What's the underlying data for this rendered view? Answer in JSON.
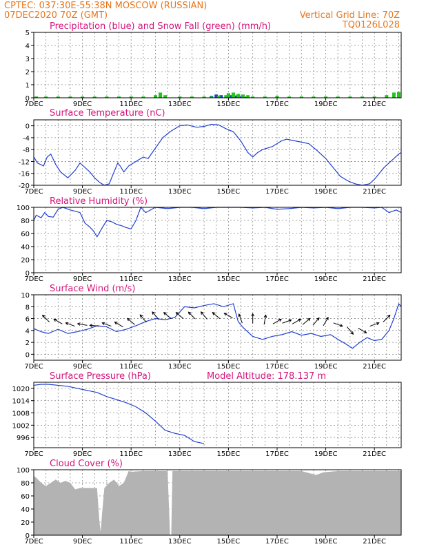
{
  "header": {
    "line1_left": "CPTEC:   037:30E-55:38N   MOSCOW (RUSSIAN)",
    "line2_left": "07DEC2020 70Z (GMT)",
    "line1_right": "Vertical Grid Line: 70Z",
    "line2_right": "TQ0126L028"
  },
  "date_labels": [
    "7DEC",
    "9DEC",
    "11DEC",
    "13DEC",
    "15DEC",
    "17DEC",
    "19DEC",
    "21DEC"
  ],
  "colors": {
    "header": "#e8761c",
    "title": "#d4147a",
    "line": "#1f3fd1",
    "snow": "#22c51c",
    "rain": "#1f3fd1",
    "cloud": "#b3b3b3"
  },
  "chart_data": [
    {
      "id": "precip",
      "type": "bar",
      "title": "Precipitation (blue) and Snow Fall (green) (mm/h)",
      "ylim": [
        0,
        5
      ],
      "yticks": [
        0,
        1,
        2,
        3,
        4,
        5
      ],
      "ytick_labels": [
        "0",
        "1",
        "2",
        "3",
        "4",
        "5"
      ],
      "xlim": [
        0,
        15.1
      ],
      "grid": true,
      "series": [
        {
          "name": "Precipitation",
          "color": "#1f3fd1",
          "x": [
            7.3,
            7.5,
            7.7,
            7.9,
            8.1,
            8.3,
            8.5,
            8.7
          ],
          "values": [
            0.15,
            0.25,
            0.2,
            0.15,
            0.2,
            0.18,
            0.12,
            0.08
          ]
        },
        {
          "name": "Snow Fall",
          "color": "#22c51c",
          "x": [
            0.1,
            0.5,
            1.0,
            1.5,
            2.0,
            2.5,
            3.0,
            3.5,
            4.0,
            4.5,
            5.0,
            5.2,
            5.4,
            6.0,
            6.5,
            7.0,
            7.3,
            7.6,
            7.9,
            8.0,
            8.2,
            8.4,
            8.6,
            8.8,
            9.0,
            9.5,
            10.0,
            10.5,
            11.0,
            11.5,
            12.0,
            12.5,
            13.0,
            13.5,
            14.0,
            14.5,
            14.8,
            15.0
          ],
          "values": [
            0.1,
            0.1,
            0.1,
            0.1,
            0.1,
            0.1,
            0.1,
            0.1,
            0.1,
            0.1,
            0.2,
            0.4,
            0.2,
            0.1,
            0.1,
            0.1,
            0.1,
            0.15,
            0.2,
            0.35,
            0.4,
            0.3,
            0.25,
            0.2,
            0.1,
            0.1,
            0.15,
            0.1,
            0.1,
            0.1,
            0.1,
            0.1,
            0.1,
            0.1,
            0.1,
            0.2,
            0.4,
            0.45
          ]
        }
      ]
    },
    {
      "id": "temp",
      "type": "line",
      "title": "Surface Temperature (nC)",
      "ylim": [
        -20,
        2
      ],
      "yticks": [
        0,
        -4,
        -8,
        -12,
        -16,
        -20
      ],
      "ytick_labels": [
        "0",
        "-4",
        "-8",
        "-12",
        "-16",
        "-20"
      ],
      "xlim": [
        0,
        15.1
      ],
      "grid": true,
      "series": [
        {
          "name": "",
          "color": "#1f3fd1",
          "x": [
            0,
            0.15,
            0.4,
            0.55,
            0.7,
            0.9,
            1.1,
            1.4,
            1.7,
            1.9,
            2.1,
            2.3,
            2.5,
            2.7,
            2.9,
            3.1,
            3.3,
            3.45,
            3.55,
            3.7,
            3.9,
            4.1,
            4.3,
            4.5,
            4.7,
            5.0,
            5.3,
            5.6,
            6.0,
            6.3,
            6.7,
            7.0,
            7.3,
            7.6,
            7.9,
            8.2,
            8.5,
            8.8,
            9.0,
            9.2,
            9.4,
            9.6,
            9.8,
            10.0,
            10.2,
            10.4,
            10.7,
            11.0,
            11.3,
            11.6,
            12.0,
            12.3,
            12.6,
            12.9,
            13.2,
            13.5,
            13.8,
            14.0,
            14.2,
            14.4,
            14.6,
            14.8,
            15.0,
            15.1
          ],
          "values": [
            -10.5,
            -12.5,
            -13.5,
            -10.5,
            -9.5,
            -13,
            -15.5,
            -17.5,
            -15,
            -12.5,
            -14,
            -15.5,
            -17.5,
            -19,
            -20,
            -19.5,
            -15.5,
            -12.5,
            -13.5,
            -15.5,
            -13.5,
            -12.5,
            -11.5,
            -10.5,
            -11,
            -7.5,
            -4,
            -2,
            0,
            0.3,
            -0.5,
            -0.2,
            0.5,
            0.3,
            -1,
            -2,
            -5,
            -9,
            -10.5,
            -9,
            -8,
            -7.5,
            -7,
            -6,
            -5,
            -4.5,
            -5,
            -5.5,
            -6,
            -8,
            -11,
            -14,
            -17,
            -18.5,
            -19.5,
            -20,
            -19.5,
            -18,
            -16,
            -14,
            -12.5,
            -11,
            -9.5,
            -9
          ]
        }
      ]
    },
    {
      "id": "rh",
      "type": "line",
      "title": "Relative Humidity (%)",
      "ylim": [
        0,
        100
      ],
      "yticks": [
        0,
        20,
        40,
        60,
        80,
        100
      ],
      "ytick_labels": [
        "0",
        "20",
        "40",
        "60",
        "80",
        "100"
      ],
      "xlim": [
        0,
        15.1
      ],
      "grid": true,
      "series": [
        {
          "name": "",
          "color": "#1f3fd1",
          "x": [
            0,
            0.1,
            0.3,
            0.45,
            0.6,
            0.8,
            1.0,
            1.2,
            1.5,
            1.7,
            1.9,
            2.1,
            2.3,
            2.45,
            2.6,
            2.8,
            3.0,
            3.2,
            3.4,
            3.6,
            3.8,
            4.0,
            4.2,
            4.4,
            4.6,
            5.0,
            5.5,
            6.0,
            6.5,
            7.0,
            7.5,
            8.0,
            8.5,
            9.0,
            9.5,
            10.0,
            10.5,
            11.0,
            11.5,
            12.0,
            12.5,
            13.0,
            13.5,
            14.0,
            14.3,
            14.6,
            14.9,
            15.1
          ],
          "values": [
            80,
            88,
            84,
            92,
            86,
            85,
            97,
            100,
            96,
            94,
            92,
            76,
            70,
            64,
            55,
            68,
            80,
            78,
            74,
            72,
            69,
            67,
            80,
            100,
            92,
            100,
            98,
            100,
            100,
            98,
            100,
            100,
            100,
            99,
            100,
            97,
            98,
            100,
            99,
            100,
            98,
            100,
            100,
            99,
            100,
            92,
            96,
            92
          ]
        }
      ]
    },
    {
      "id": "wind",
      "type": "line",
      "title": "Surface Wind (m/s)",
      "ylim": [
        -1,
        10
      ],
      "yticks": [
        0,
        2,
        4,
        6,
        8,
        10
      ],
      "ytick_labels": [
        "0",
        "2",
        "4",
        "6",
        "8",
        "10"
      ],
      "xlim": [
        0,
        15.1
      ],
      "grid": true,
      "series": [
        {
          "name": "",
          "color": "#1f3fd1",
          "x": [
            0,
            0.3,
            0.6,
            1.0,
            1.4,
            1.8,
            2.2,
            2.6,
            3.0,
            3.4,
            3.8,
            4.2,
            4.6,
            5.0,
            5.4,
            5.8,
            6.2,
            6.6,
            7.0,
            7.4,
            7.8,
            8.2,
            8.4,
            8.6,
            9.0,
            9.4,
            9.8,
            10.2,
            10.6,
            11.0,
            11.4,
            11.8,
            12.2,
            12.5,
            12.8,
            13.1,
            13.4,
            13.7,
            14.0,
            14.3,
            14.6,
            14.8,
            15.0,
            15.1
          ],
          "values": [
            4.3,
            3.8,
            3.5,
            4.2,
            3.5,
            3.8,
            4.2,
            4.8,
            4.6,
            3.8,
            4.2,
            4.8,
            5.5,
            6,
            5.8,
            6.2,
            8,
            7.8,
            8.2,
            8.5,
            8.0,
            8.5,
            5.5,
            4.5,
            3.0,
            2.5,
            3.0,
            3.3,
            3.8,
            3.2,
            3.5,
            3.0,
            3.3,
            2.5,
            1.8,
            1.0,
            2.0,
            2.8,
            2.3,
            2.5,
            4.0,
            6.0,
            8.5,
            8.0
          ]
        }
      ],
      "arrows": [
        {
          "x": 0.5,
          "y": 6,
          "dir": 135
        },
        {
          "x": 1.0,
          "y": 5.5,
          "dir": 150
        },
        {
          "x": 1.5,
          "y": 5,
          "dir": 160
        },
        {
          "x": 2.0,
          "y": 5,
          "dir": 170
        },
        {
          "x": 2.5,
          "y": 4.8,
          "dir": 175
        },
        {
          "x": 3.0,
          "y": 5,
          "dir": 160
        },
        {
          "x": 3.5,
          "y": 5,
          "dir": 150
        },
        {
          "x": 4.0,
          "y": 5.5,
          "dir": 140
        },
        {
          "x": 4.5,
          "y": 6,
          "dir": 130
        },
        {
          "x": 5.0,
          "y": 6.5,
          "dir": 130
        },
        {
          "x": 5.5,
          "y": 6.5,
          "dir": 140
        },
        {
          "x": 6.0,
          "y": 6.5,
          "dir": 140
        },
        {
          "x": 6.5,
          "y": 6.5,
          "dir": 135
        },
        {
          "x": 7.0,
          "y": 6.5,
          "dir": 130
        },
        {
          "x": 7.5,
          "y": 6.5,
          "dir": 140
        },
        {
          "x": 8.0,
          "y": 6.5,
          "dir": 150
        },
        {
          "x": 8.5,
          "y": 6,
          "dir": 110
        },
        {
          "x": 9.0,
          "y": 6,
          "dir": 90
        },
        {
          "x": 9.5,
          "y": 5.8,
          "dir": 80
        },
        {
          "x": 10.0,
          "y": 5.5,
          "dir": 30
        },
        {
          "x": 10.4,
          "y": 5.5,
          "dir": 20
        },
        {
          "x": 10.8,
          "y": 5.5,
          "dir": 30
        },
        {
          "x": 11.2,
          "y": 5.5,
          "dir": 40
        },
        {
          "x": 11.6,
          "y": 5.5,
          "dir": 50
        },
        {
          "x": 12.0,
          "y": 5.5,
          "dir": 60
        },
        {
          "x": 12.5,
          "y": 5,
          "dir": -20
        },
        {
          "x": 13.0,
          "y": 4,
          "dir": -50
        },
        {
          "x": 13.5,
          "y": 4,
          "dir": -30
        },
        {
          "x": 14.0,
          "y": 5,
          "dir": 20
        },
        {
          "x": 14.5,
          "y": 6,
          "dir": 45
        }
      ]
    },
    {
      "id": "pressure",
      "type": "line",
      "title": "Surface Pressure (hPa)",
      "extra_label": "Model Altitude: 178.137 m",
      "ylim": [
        991,
        1023
      ],
      "yticks": [
        996,
        1002,
        1008,
        1014,
        1020
      ],
      "ytick_labels": [
        "996",
        "1002",
        "1008",
        "1014",
        "1020"
      ],
      "xlim": [
        0,
        15.1
      ],
      "grid": true,
      "series": [
        {
          "name": "",
          "color": "#1f3fd1",
          "x": [
            0,
            0.3,
            0.6,
            1.0,
            1.4,
            1.8,
            2.2,
            2.6,
            3.0,
            3.4,
            3.8,
            4.2,
            4.6,
            5.0,
            5.4,
            5.8,
            6.2,
            6.6,
            7.0
          ],
          "values": [
            1021.5,
            1022,
            1022,
            1021.5,
            1021,
            1020,
            1019,
            1018,
            1016,
            1014.5,
            1013,
            1011,
            1008,
            1004,
            999.5,
            998,
            997,
            994,
            993
          ]
        }
      ]
    },
    {
      "id": "cloud",
      "type": "area",
      "title": "Cloud Cover (%)",
      "ylim": [
        0,
        100
      ],
      "yticks": [
        0,
        20,
        40,
        60,
        80,
        100
      ],
      "ytick_labels": [
        "0",
        "20",
        "40",
        "60",
        "80",
        "100"
      ],
      "xlim": [
        0,
        15.1
      ],
      "grid": true,
      "series": [
        {
          "name": "",
          "color": "#b3b3b3",
          "x": [
            0,
            0.1,
            0.3,
            0.5,
            0.7,
            0.9,
            1.1,
            1.3,
            1.5,
            1.7,
            1.9,
            2.0,
            2.3,
            2.6,
            2.7,
            2.75,
            2.8,
            2.9,
            3.1,
            3.3,
            3.5,
            3.7,
            3.9,
            4.0,
            4.5,
            5.0,
            5.5,
            5.6,
            5.65,
            5.7,
            6.0,
            7.0,
            8.0,
            9.0,
            10.0,
            11.0,
            11.3,
            11.6,
            11.9,
            12.5,
            13.0,
            14.0,
            15.0,
            15.1
          ],
          "values": [
            90,
            88,
            80,
            75,
            80,
            85,
            80,
            83,
            80,
            70,
            72,
            72,
            72,
            72,
            20,
            5,
            30,
            72,
            80,
            85,
            75,
            80,
            98,
            97,
            98,
            98,
            98,
            0,
            0,
            98,
            98,
            98,
            98,
            98,
            98,
            98,
            95,
            92,
            96,
            98,
            98,
            98,
            98,
            98
          ]
        }
      ]
    }
  ]
}
